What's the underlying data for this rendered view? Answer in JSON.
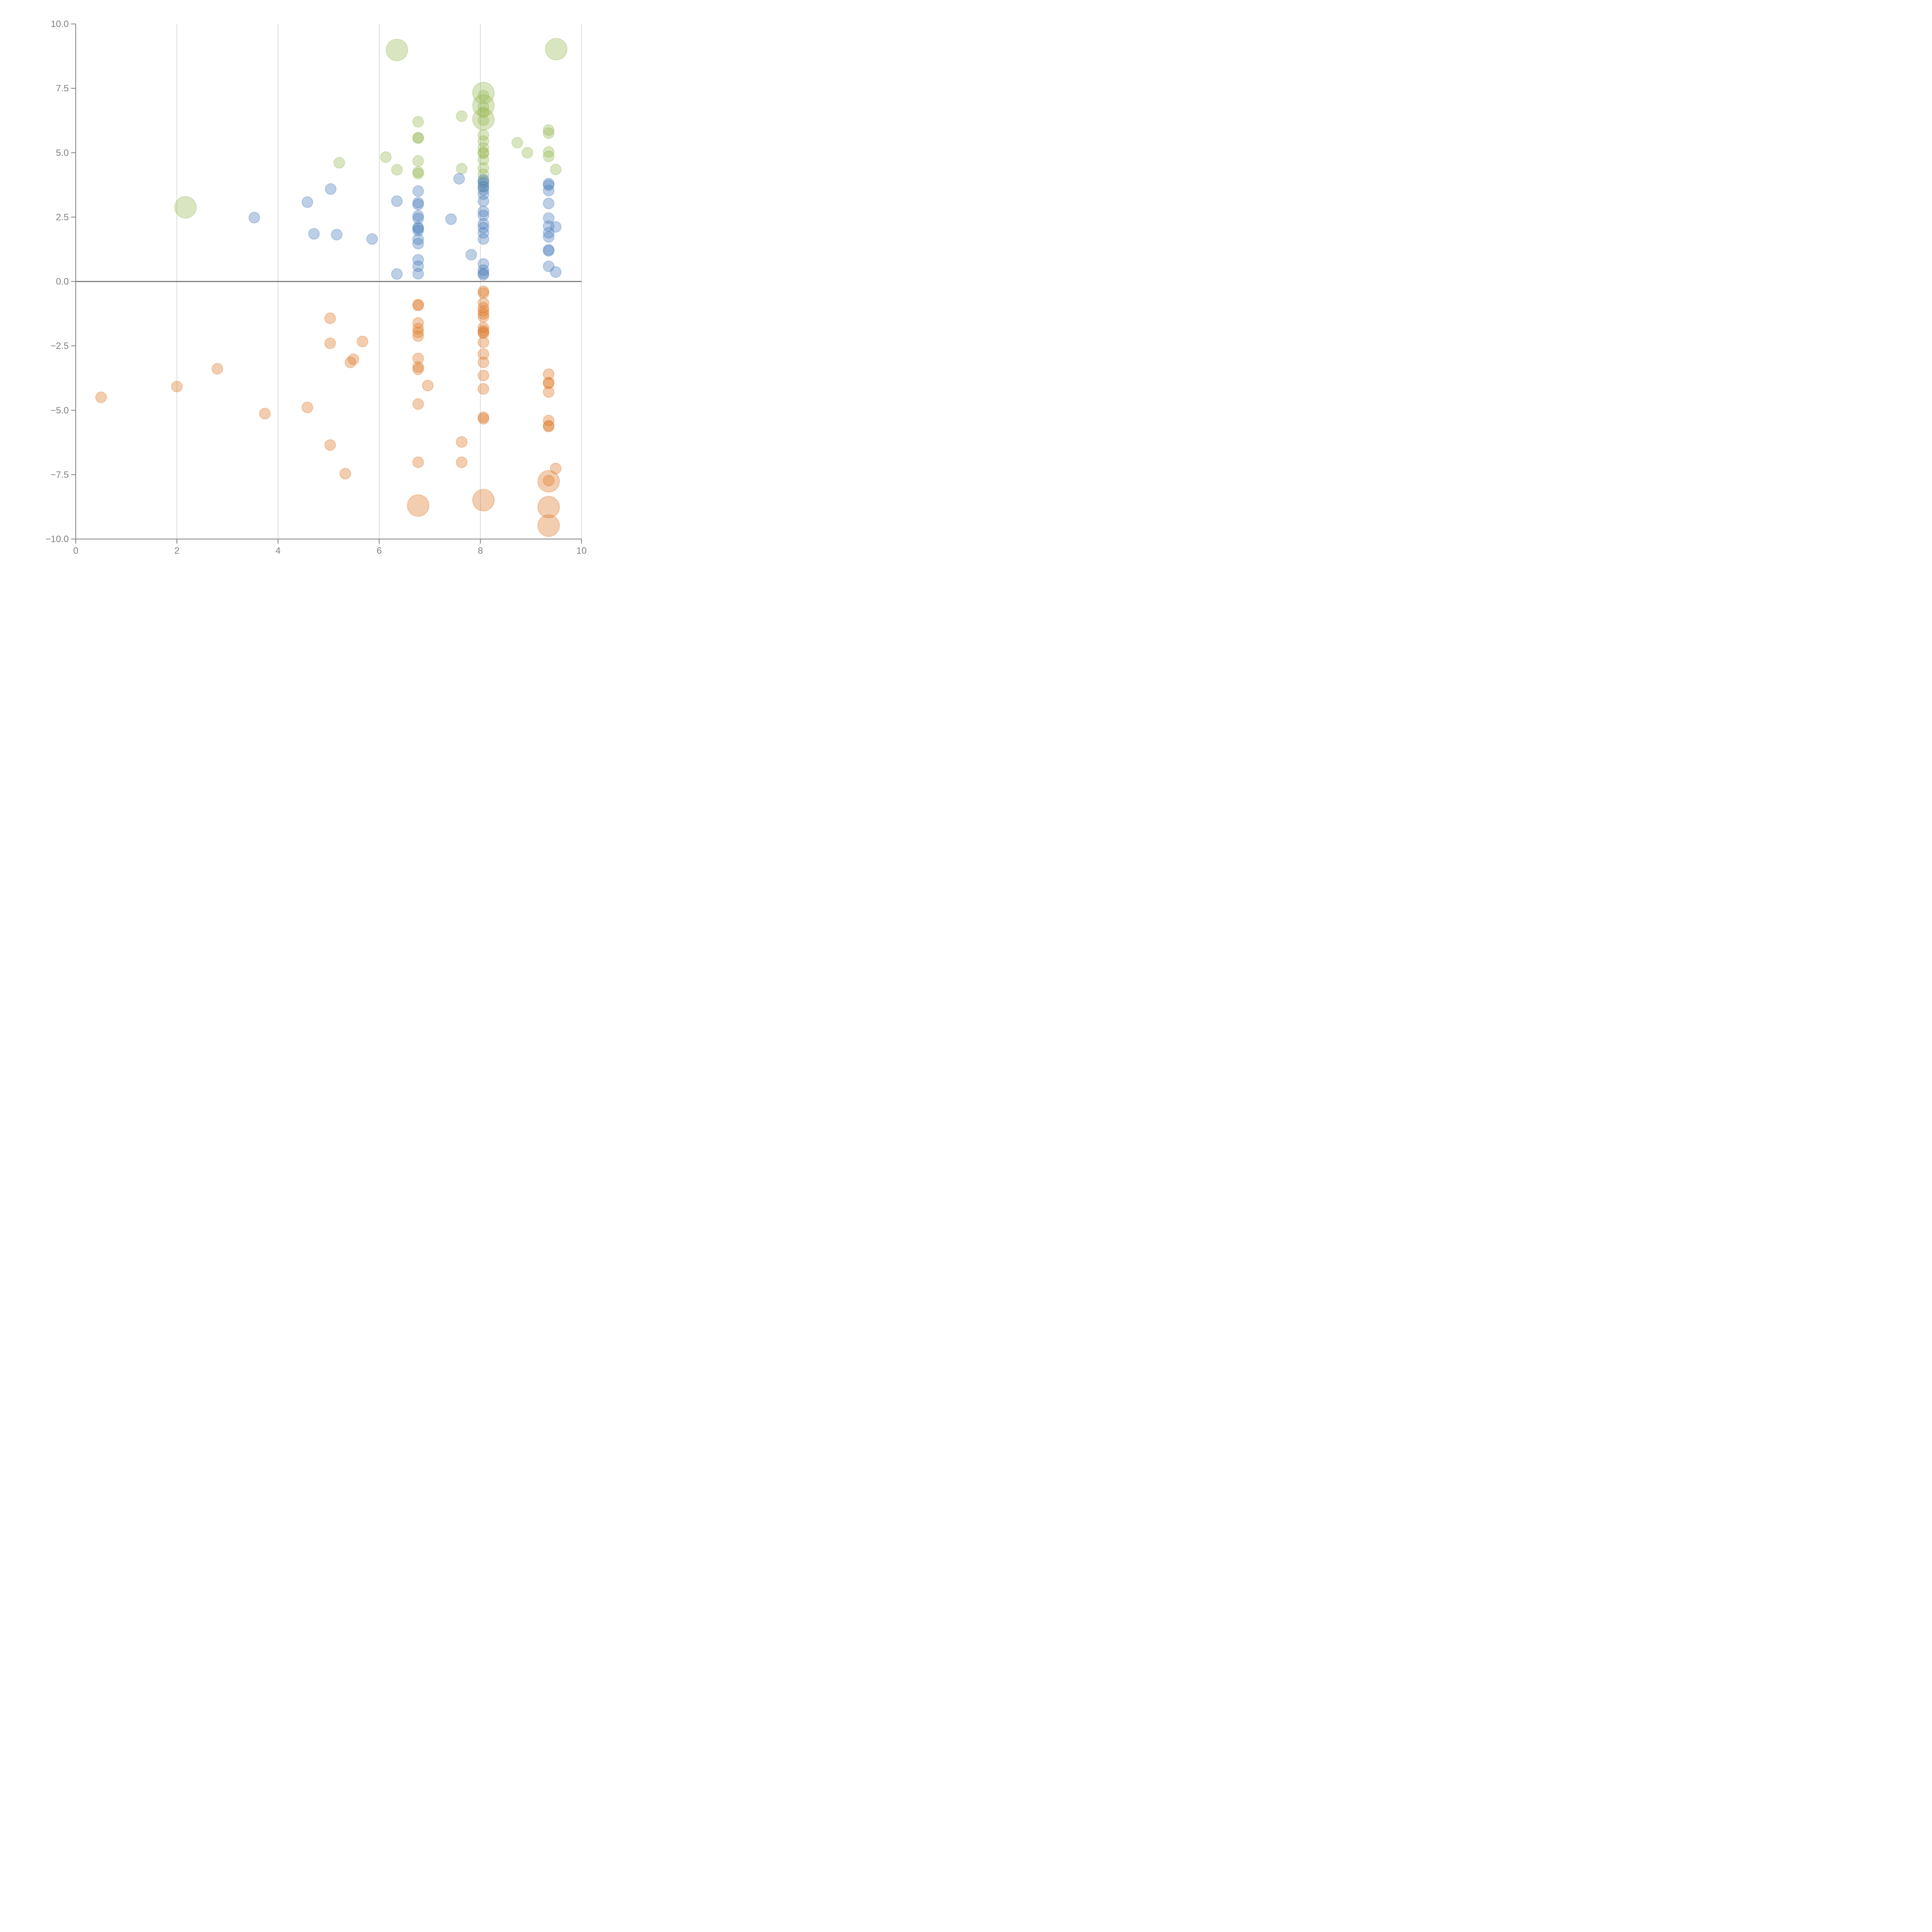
{
  "chart_data": {
    "type": "scatter",
    "subtype": "bubble",
    "title": "",
    "xlabel": "",
    "ylabel": "",
    "xlim": [
      0,
      10
    ],
    "ylim": [
      -10,
      10
    ],
    "x_ticks": [
      "0",
      "2",
      "4",
      "6",
      "8",
      "10"
    ],
    "x_tick_values": [
      0,
      2,
      4,
      6,
      8,
      10
    ],
    "y_ticks": [
      "10.0",
      "7.5",
      "5.0",
      "2.5",
      "0.0",
      "−2.5",
      "−5.0",
      "−7.5",
      "−10.0"
    ],
    "y_tick_values": [
      10,
      7.5,
      5,
      2.5,
      0,
      -2.5,
      -5,
      -7.5,
      -10
    ],
    "grid": "vertical",
    "legend": "none",
    "series": [
      {
        "name": "green",
        "color": "#9bbb59",
        "points": [
          {
            "x": 2.17,
            "y": 2.88,
            "s": 2
          },
          {
            "x": 5.21,
            "y": 4.61,
            "s": 1
          },
          {
            "x": 6.13,
            "y": 4.83,
            "s": 1
          },
          {
            "x": 6.35,
            "y": 4.34,
            "s": 1
          },
          {
            "x": 6.35,
            "y": 8.99,
            "s": 2
          },
          {
            "x": 6.77,
            "y": 6.2,
            "s": 1
          },
          {
            "x": 6.77,
            "y": 5.58,
            "s": 1
          },
          {
            "x": 6.77,
            "y": 5.57,
            "s": 1
          },
          {
            "x": 6.77,
            "y": 4.68,
            "s": 1
          },
          {
            "x": 6.77,
            "y": 4.25,
            "s": 1
          },
          {
            "x": 6.77,
            "y": 4.19,
            "s": 1
          },
          {
            "x": 7.63,
            "y": 6.42,
            "s": 1
          },
          {
            "x": 7.63,
            "y": 4.38,
            "s": 1
          },
          {
            "x": 8.06,
            "y": 7.32,
            "s": 2
          },
          {
            "x": 8.06,
            "y": 6.83,
            "s": 2
          },
          {
            "x": 8.06,
            "y": 6.3,
            "s": 2
          },
          {
            "x": 8.06,
            "y": 7.22,
            "s": 1
          },
          {
            "x": 8.06,
            "y": 6.78,
            "s": 1
          },
          {
            "x": 8.06,
            "y": 6.57,
            "s": 1
          },
          {
            "x": 8.06,
            "y": 6.26,
            "s": 1
          },
          {
            "x": 8.06,
            "y": 5.69,
            "s": 1
          },
          {
            "x": 8.06,
            "y": 5.45,
            "s": 1
          },
          {
            "x": 8.06,
            "y": 5.19,
            "s": 1
          },
          {
            "x": 8.06,
            "y": 5.01,
            "s": 1
          },
          {
            "x": 8.06,
            "y": 4.98,
            "s": 1
          },
          {
            "x": 8.06,
            "y": 4.73,
            "s": 1
          },
          {
            "x": 8.06,
            "y": 4.41,
            "s": 1
          },
          {
            "x": 8.06,
            "y": 4.16,
            "s": 1
          },
          {
            "x": 8.06,
            "y": 3.89,
            "s": 1
          },
          {
            "x": 8.06,
            "y": 3.69,
            "s": 1
          },
          {
            "x": 8.73,
            "y": 5.39,
            "s": 1
          },
          {
            "x": 8.93,
            "y": 5.0,
            "s": 1
          },
          {
            "x": 9.35,
            "y": 5.88,
            "s": 1
          },
          {
            "x": 9.35,
            "y": 5.76,
            "s": 1
          },
          {
            "x": 9.35,
            "y": 5.03,
            "s": 1
          },
          {
            "x": 9.35,
            "y": 4.86,
            "s": 1
          },
          {
            "x": 9.49,
            "y": 4.35,
            "s": 1
          },
          {
            "x": 9.5,
            "y": 9.02,
            "s": 2
          }
        ]
      },
      {
        "name": "blue",
        "color": "#4f81bd",
        "points": [
          {
            "x": 3.53,
            "y": 2.48,
            "s": 1
          },
          {
            "x": 4.58,
            "y": 3.08,
            "s": 1
          },
          {
            "x": 5.04,
            "y": 3.59,
            "s": 1
          },
          {
            "x": 4.71,
            "y": 1.85,
            "s": 1
          },
          {
            "x": 5.16,
            "y": 1.82,
            "s": 1
          },
          {
            "x": 5.86,
            "y": 1.65,
            "s": 1
          },
          {
            "x": 6.35,
            "y": 3.12,
            "s": 1
          },
          {
            "x": 6.35,
            "y": 0.29,
            "s": 1
          },
          {
            "x": 7.42,
            "y": 2.42,
            "s": 1
          },
          {
            "x": 7.58,
            "y": 3.99,
            "s": 1
          },
          {
            "x": 7.82,
            "y": 1.04,
            "s": 1
          },
          {
            "x": 9.49,
            "y": 2.12,
            "s": 1
          },
          {
            "x": 9.49,
            "y": 0.37,
            "s": 1
          },
          {
            "x": 6.77,
            "y": 3.51,
            "s": 1
          },
          {
            "x": 6.77,
            "y": 3.06,
            "s": 1
          },
          {
            "x": 6.77,
            "y": 2.99,
            "s": 1
          },
          {
            "x": 6.77,
            "y": 2.55,
            "s": 1
          },
          {
            "x": 6.77,
            "y": 2.45,
            "s": 1
          },
          {
            "x": 6.77,
            "y": 2.1,
            "s": 1
          },
          {
            "x": 6.77,
            "y": 2.06,
            "s": 1
          },
          {
            "x": 6.77,
            "y": 1.98,
            "s": 1
          },
          {
            "x": 6.77,
            "y": 1.64,
            "s": 1
          },
          {
            "x": 6.77,
            "y": 1.47,
            "s": 1
          },
          {
            "x": 6.77,
            "y": 0.84,
            "s": 1
          },
          {
            "x": 6.77,
            "y": 0.59,
            "s": 1
          },
          {
            "x": 6.77,
            "y": 0.3,
            "s": 1
          },
          {
            "x": 8.06,
            "y": 3.95,
            "s": 1
          },
          {
            "x": 8.06,
            "y": 3.83,
            "s": 1
          },
          {
            "x": 8.06,
            "y": 3.68,
            "s": 1
          },
          {
            "x": 8.06,
            "y": 3.56,
            "s": 1
          },
          {
            "x": 8.06,
            "y": 3.39,
            "s": 1
          },
          {
            "x": 8.06,
            "y": 3.12,
            "s": 1
          },
          {
            "x": 8.06,
            "y": 2.72,
            "s": 1
          },
          {
            "x": 8.06,
            "y": 2.57,
            "s": 1
          },
          {
            "x": 8.06,
            "y": 2.24,
            "s": 1
          },
          {
            "x": 8.06,
            "y": 2.09,
            "s": 1
          },
          {
            "x": 8.06,
            "y": 1.89,
            "s": 1
          },
          {
            "x": 8.06,
            "y": 1.65,
            "s": 1
          },
          {
            "x": 8.06,
            "y": 0.68,
            "s": 1
          },
          {
            "x": 8.06,
            "y": 0.44,
            "s": 1
          },
          {
            "x": 8.06,
            "y": 0.32,
            "s": 1
          },
          {
            "x": 8.06,
            "y": 0.26,
            "s": 1
          },
          {
            "x": 9.35,
            "y": 3.8,
            "s": 1
          },
          {
            "x": 9.35,
            "y": 3.74,
            "s": 1
          },
          {
            "x": 9.35,
            "y": 3.53,
            "s": 1
          },
          {
            "x": 9.35,
            "y": 3.03,
            "s": 1
          },
          {
            "x": 9.35,
            "y": 2.46,
            "s": 1
          },
          {
            "x": 9.35,
            "y": 2.15,
            "s": 1
          },
          {
            "x": 9.35,
            "y": 1.89,
            "s": 1
          },
          {
            "x": 9.35,
            "y": 1.73,
            "s": 1
          },
          {
            "x": 9.35,
            "y": 1.23,
            "s": 1
          },
          {
            "x": 9.35,
            "y": 1.19,
            "s": 1
          },
          {
            "x": 9.35,
            "y": 0.59,
            "s": 1
          }
        ]
      },
      {
        "name": "orange",
        "color": "#e07b2e",
        "points": [
          {
            "x": 0.5,
            "y": -4.5,
            "s": 1
          },
          {
            "x": 2.0,
            "y": -4.08,
            "s": 1
          },
          {
            "x": 2.8,
            "y": -3.39,
            "s": 1
          },
          {
            "x": 3.74,
            "y": -5.13,
            "s": 1
          },
          {
            "x": 4.58,
            "y": -4.89,
            "s": 1
          },
          {
            "x": 5.03,
            "y": -1.43,
            "s": 1
          },
          {
            "x": 5.03,
            "y": -2.4,
            "s": 1
          },
          {
            "x": 5.03,
            "y": -6.35,
            "s": 1
          },
          {
            "x": 5.67,
            "y": -2.33,
            "s": 1
          },
          {
            "x": 5.49,
            "y": -3.02,
            "s": 1
          },
          {
            "x": 5.43,
            "y": -3.14,
            "s": 1
          },
          {
            "x": 5.33,
            "y": -7.46,
            "s": 1
          },
          {
            "x": 6.96,
            "y": -4.04,
            "s": 1
          },
          {
            "x": 7.63,
            "y": -6.23,
            "s": 1
          },
          {
            "x": 7.63,
            "y": -7.02,
            "s": 1
          },
          {
            "x": 9.49,
            "y": -7.26,
            "s": 1
          },
          {
            "x": 6.77,
            "y": -0.9,
            "s": 1
          },
          {
            "x": 6.77,
            "y": -0.93,
            "s": 1
          },
          {
            "x": 6.77,
            "y": -1.61,
            "s": 1
          },
          {
            "x": 6.77,
            "y": -1.83,
            "s": 1
          },
          {
            "x": 6.77,
            "y": -1.97,
            "s": 1
          },
          {
            "x": 6.77,
            "y": -2.12,
            "s": 1
          },
          {
            "x": 6.77,
            "y": -2.99,
            "s": 1
          },
          {
            "x": 6.77,
            "y": -3.32,
            "s": 1
          },
          {
            "x": 6.77,
            "y": -3.41,
            "s": 1
          },
          {
            "x": 6.77,
            "y": -4.76,
            "s": 1
          },
          {
            "x": 6.77,
            "y": -7.02,
            "s": 1
          },
          {
            "x": 6.77,
            "y": -8.7,
            "s": 2
          },
          {
            "x": 8.06,
            "y": -0.38,
            "s": 1
          },
          {
            "x": 8.06,
            "y": -0.45,
            "s": 1
          },
          {
            "x": 8.06,
            "y": -0.83,
            "s": 1
          },
          {
            "x": 8.06,
            "y": -1.02,
            "s": 1
          },
          {
            "x": 8.06,
            "y": -1.14,
            "s": 1
          },
          {
            "x": 8.06,
            "y": -1.26,
            "s": 1
          },
          {
            "x": 8.06,
            "y": -1.37,
            "s": 1
          },
          {
            "x": 8.06,
            "y": -1.79,
            "s": 1
          },
          {
            "x": 8.06,
            "y": -1.91,
            "s": 1
          },
          {
            "x": 8.06,
            "y": -1.97,
            "s": 1
          },
          {
            "x": 8.06,
            "y": -2.01,
            "s": 1
          },
          {
            "x": 8.06,
            "y": -2.36,
            "s": 1
          },
          {
            "x": 8.06,
            "y": -2.82,
            "s": 1
          },
          {
            "x": 8.06,
            "y": -3.14,
            "s": 1
          },
          {
            "x": 8.06,
            "y": -3.65,
            "s": 1
          },
          {
            "x": 8.06,
            "y": -4.17,
            "s": 1
          },
          {
            "x": 8.06,
            "y": -5.27,
            "s": 1
          },
          {
            "x": 8.06,
            "y": -5.33,
            "s": 1
          },
          {
            "x": 8.06,
            "y": -8.49,
            "s": 2
          },
          {
            "x": 9.35,
            "y": -3.6,
            "s": 1
          },
          {
            "x": 9.35,
            "y": -3.92,
            "s": 1
          },
          {
            "x": 9.35,
            "y": -3.96,
            "s": 1
          },
          {
            "x": 9.35,
            "y": -4.29,
            "s": 1
          },
          {
            "x": 9.35,
            "y": -5.4,
            "s": 1
          },
          {
            "x": 9.35,
            "y": -5.6,
            "s": 1
          },
          {
            "x": 9.35,
            "y": -5.63,
            "s": 1
          },
          {
            "x": 9.35,
            "y": -7.73,
            "s": 1
          },
          {
            "x": 9.35,
            "y": -7.76,
            "s": 2
          },
          {
            "x": 9.35,
            "y": -8.76,
            "s": 2
          },
          {
            "x": 9.35,
            "y": -9.48,
            "s": 2
          }
        ]
      }
    ]
  }
}
